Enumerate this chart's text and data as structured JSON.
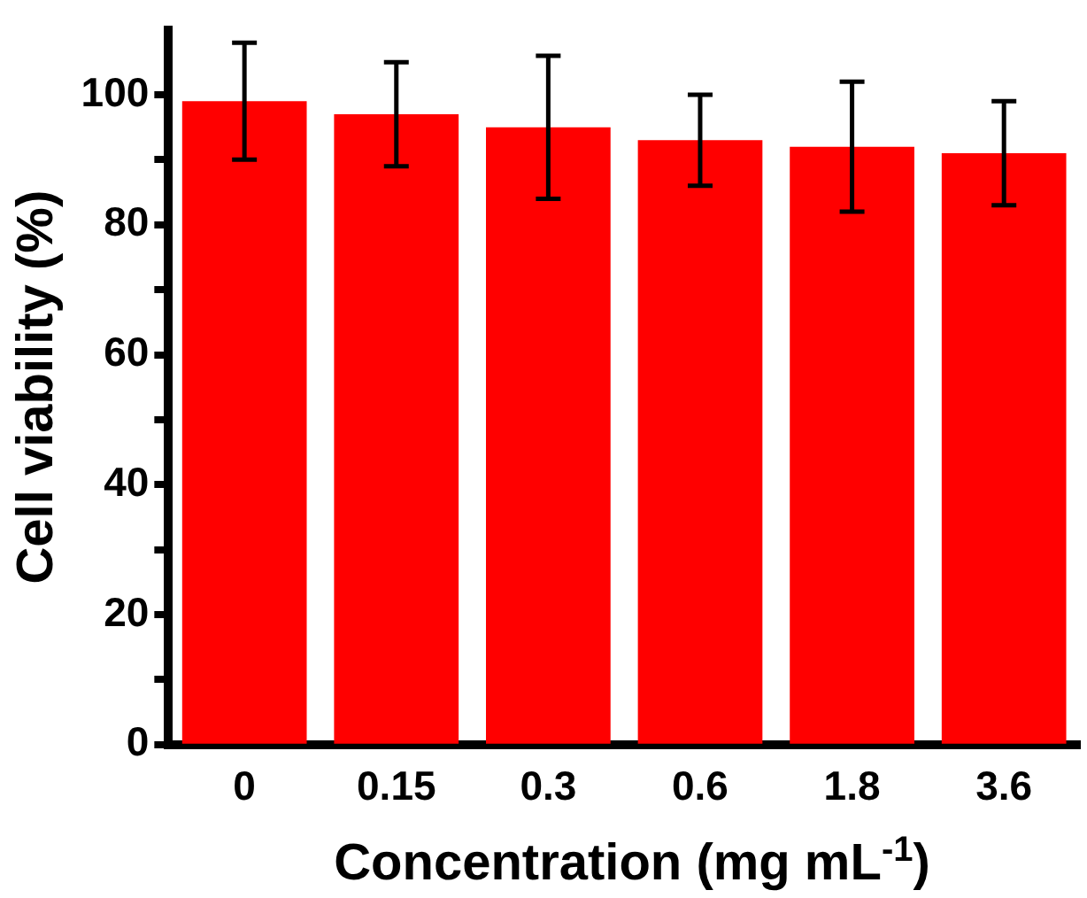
{
  "chart_data": {
    "type": "bar",
    "xlabel": "Concentration (mg mL$^{-1}$)",
    "ylabel": "Cell viability (%)",
    "categories": [
      "0",
      "0.15",
      "0.3",
      "0.6",
      "1.8",
      "3.6"
    ],
    "values": [
      99,
      97,
      95,
      93,
      92,
      91
    ],
    "errors": [
      9,
      8,
      11,
      7,
      10,
      8
    ],
    "color": "#ff0000",
    "ylim": [
      0,
      110
    ],
    "yticks": [
      0,
      {
        "value": 10,
        "label": null
      },
      20,
      {
        "value": 30,
        "label": null
      },
      40,
      {
        "value": 50,
        "label": null
      },
      60,
      {
        "value": 70,
        "label": null
      },
      80,
      {
        "value": 90,
        "label": null
      },
      100
    ],
    "grid": false,
    "legend": false
  }
}
